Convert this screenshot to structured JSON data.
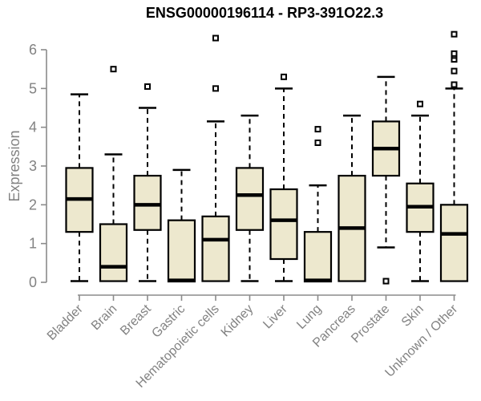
{
  "chart_data": {
    "type": "boxplot",
    "title": "ENSG00000196114 - RP3-391O22.3",
    "ylabel": "Expression",
    "xlabel": "",
    "ylim": [
      0,
      6.5
    ],
    "yticks": [
      0,
      1,
      2,
      3,
      4,
      5,
      6
    ],
    "grid": false,
    "legend": "none",
    "colors": {
      "box_fill": "#EDE8CE",
      "box_stroke": "#000000",
      "axis_line": "#8B8B8B",
      "axis_text": "#828282",
      "title_text": "#000000",
      "background": "#FFFFFF"
    },
    "categories": [
      "Bladder",
      "Brain",
      "Breast",
      "Gastric",
      "Hematopoietic cells",
      "Kidney",
      "Liver",
      "Lung",
      "Pancreas",
      "Prostate",
      "Skin",
      "Unknown / Other"
    ],
    "boxes": [
      {
        "category": "Bladder",
        "whisker_low": 0.03,
        "q1": 1.3,
        "median": 2.15,
        "q3": 2.95,
        "whisker_high": 4.85,
        "outliers": []
      },
      {
        "category": "Brain",
        "whisker_low": 0.03,
        "q1": 0.03,
        "median": 0.4,
        "q3": 1.5,
        "whisker_high": 3.3,
        "outliers": [
          5.5
        ]
      },
      {
        "category": "Breast",
        "whisker_low": 0.03,
        "q1": 1.35,
        "median": 2.0,
        "q3": 2.75,
        "whisker_high": 4.5,
        "outliers": [
          5.05
        ]
      },
      {
        "category": "Gastric",
        "whisker_low": 0.02,
        "q1": 0.02,
        "median": 0.05,
        "q3": 1.6,
        "whisker_high": 2.9,
        "outliers": []
      },
      {
        "category": "Hematopoietic cells",
        "whisker_low": 0.03,
        "q1": 0.03,
        "median": 1.1,
        "q3": 1.7,
        "whisker_high": 4.15,
        "outliers": [
          5.0,
          6.3
        ]
      },
      {
        "category": "Kidney",
        "whisker_low": 0.03,
        "q1": 1.35,
        "median": 2.25,
        "q3": 2.95,
        "whisker_high": 4.3,
        "outliers": []
      },
      {
        "category": "Liver",
        "whisker_low": 0.03,
        "q1": 0.6,
        "median": 1.6,
        "q3": 2.4,
        "whisker_high": 5.0,
        "outliers": [
          5.3
        ]
      },
      {
        "category": "Lung",
        "whisker_low": 0.02,
        "q1": 0.02,
        "median": 0.05,
        "q3": 1.3,
        "whisker_high": 2.5,
        "outliers": [
          3.6,
          3.95
        ]
      },
      {
        "category": "Pancreas",
        "whisker_low": 0.03,
        "q1": 0.03,
        "median": 1.4,
        "q3": 2.75,
        "whisker_high": 4.3,
        "outliers": []
      },
      {
        "category": "Prostate",
        "whisker_low": 0.9,
        "q1": 2.75,
        "median": 3.45,
        "q3": 4.15,
        "whisker_high": 5.3,
        "outliers": [
          0.03
        ]
      },
      {
        "category": "Skin",
        "whisker_low": 0.03,
        "q1": 1.3,
        "median": 1.95,
        "q3": 2.55,
        "whisker_high": 4.3,
        "outliers": [
          4.6
        ]
      },
      {
        "category": "Unknown / Other",
        "whisker_low": 0.03,
        "q1": 0.03,
        "median": 1.25,
        "q3": 2.0,
        "whisker_high": 5.0,
        "outliers": [
          5.1,
          5.45,
          5.75,
          5.85,
          5.9,
          6.4
        ]
      }
    ]
  }
}
